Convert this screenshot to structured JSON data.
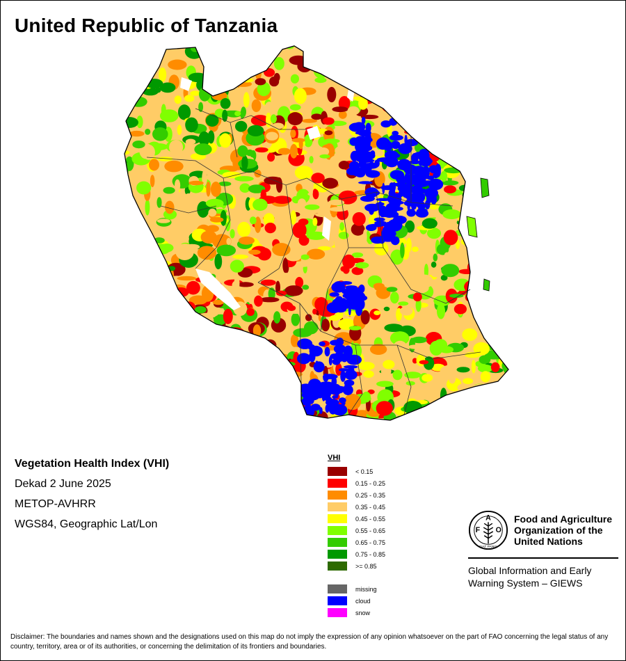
{
  "map": {
    "title": "United Republic of Tanzania",
    "product": "Vegetation Health Index (VHI)",
    "period": "Dekad 2 June 2025",
    "sensor": "METOP-AVHRR",
    "projection": "WGS84, Geographic Lat/Lon"
  },
  "legend": {
    "title": "VHI",
    "classes": [
      {
        "label": "< 0.15",
        "color": "#990000"
      },
      {
        "label": "0.15 - 0.25",
        "color": "#ff0000"
      },
      {
        "label": "0.25 - 0.35",
        "color": "#ff8c00"
      },
      {
        "label": "0.35 - 0.45",
        "color": "#ffcc66"
      },
      {
        "label": "0.45 - 0.55",
        "color": "#ffff00"
      },
      {
        "label": "0.55 - 0.65",
        "color": "#80ff00"
      },
      {
        "label": "0.65 - 0.75",
        "color": "#33cc00"
      },
      {
        "label": "0.75 - 0.85",
        "color": "#009900"
      },
      {
        "label": ">= 0.85",
        "color": "#2d6a00"
      }
    ],
    "special": [
      {
        "label": "missing",
        "color": "#666666"
      },
      {
        "label": "cloud",
        "color": "#0000ff"
      },
      {
        "label": "snow",
        "color": "#ff00ff"
      }
    ]
  },
  "organization": {
    "line1": "Food and Agriculture",
    "line2": "Organization of the",
    "line3": "United Nations",
    "giews_line1": "Global Information and Early",
    "giews_line2": "Warning System – GIEWS",
    "logo_letters": [
      "F",
      "A",
      "O"
    ],
    "logo_motto": "FIAT PANIS"
  },
  "disclaimer": "Disclaimer: The boundaries and names shown and the designations used on this map do not imply the expression of any opinion whatsoever on the part of FAO concerning the legal status of any country, territory, area or of its authorities, or concerning the delimitation of its frontiers and boundaries."
}
